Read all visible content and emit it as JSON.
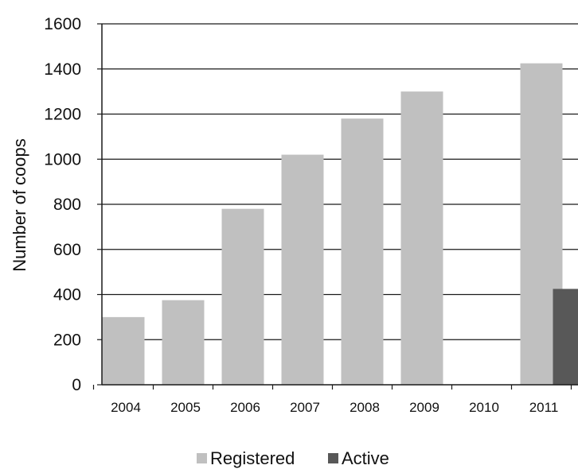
{
  "chart_data": {
    "type": "bar",
    "title": "",
    "xlabel": "",
    "ylabel": "Number of coops",
    "categories": [
      "2004",
      "2005",
      "2006",
      "2007",
      "2008",
      "2009",
      "2010",
      "2011"
    ],
    "series": [
      {
        "name": "Registered",
        "color": "#c0c0c0",
        "values": [
          300,
          375,
          780,
          1020,
          1180,
          1300,
          null,
          1425
        ]
      },
      {
        "name": "Active",
        "color": "#585858",
        "values": [
          null,
          null,
          null,
          null,
          null,
          null,
          null,
          425
        ]
      }
    ],
    "ylim": [
      0,
      1600
    ],
    "yticks": [
      0,
      200,
      400,
      600,
      800,
      1000,
      1200,
      1400,
      1600
    ],
    "grid": true,
    "legend_position": "bottom-center"
  }
}
